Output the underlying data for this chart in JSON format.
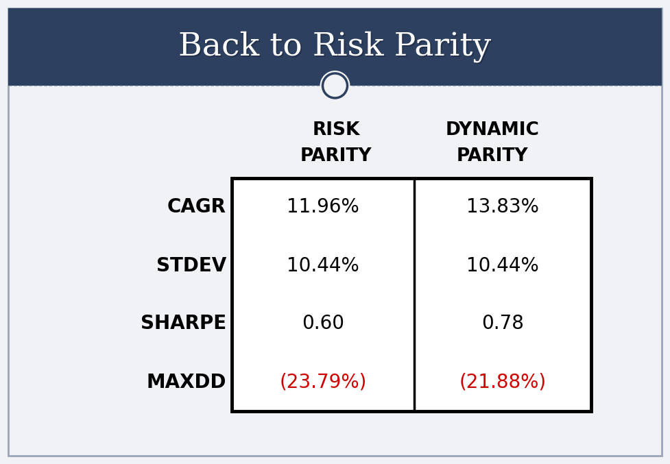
{
  "title": "Back to Risk Parity",
  "title_color": "#FFFFFF",
  "header_bg_color": "#2E4060",
  "header_top_color": "#3A4F6E",
  "body_bg_color": "#F0F2F5",
  "outer_border_color": "#9AA5B8",
  "col_headers_line1": [
    "RISK",
    "DYNAMIC"
  ],
  "col_headers_line2": [
    "PARITY",
    "PARITY"
  ],
  "row_labels": [
    "CAGR",
    "STDEV",
    "SHARPE",
    "MAXDD"
  ],
  "col1_values": [
    "11.96%",
    "10.44%",
    "0.60",
    "(23.79%)"
  ],
  "col2_values": [
    "13.83%",
    "10.44%",
    "0.78",
    "(21.88%)"
  ],
  "value_colors": [
    "#000000",
    "#000000",
    "#000000",
    "#CC0000"
  ],
  "col_header_color": "#000000",
  "row_label_color": "#000000",
  "table_border_color": "#000000",
  "circle_edge_color": "#2E4060",
  "circle_fill_color": "#F0F2F5",
  "fig_width": 9.77,
  "fig_height": 6.77,
  "dpi": 100
}
